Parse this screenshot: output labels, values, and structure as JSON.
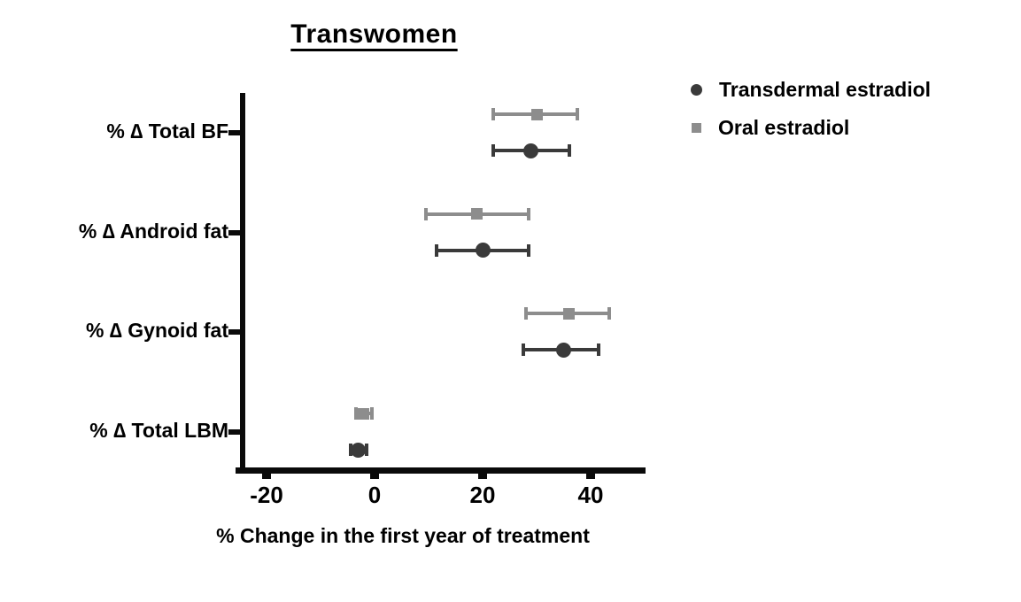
{
  "chart_data": {
    "type": "scatter",
    "variant": "horizontal-dot-error-bars",
    "title": "Transwomen",
    "xlabel": "% Change in the first year of treatment",
    "ylabel": "",
    "categories": [
      "% ∆ Total BF",
      "% ∆ Android fat",
      "% ∆ Gynoid fat",
      "% ∆ Total LBM"
    ],
    "x_ticks": [
      -20,
      0,
      20,
      40
    ],
    "xlim": [
      -26,
      50
    ],
    "grid": false,
    "legend_position": "top-right",
    "series": [
      {
        "name": "Transdermal estradiol",
        "marker": "circle",
        "color": "#3a3a3a",
        "values": [
          29,
          20,
          35,
          -3
        ],
        "ci_low": [
          22,
          11.5,
          27.5,
          -4.5
        ],
        "ci_high": [
          36,
          28.5,
          41.5,
          -1.5
        ]
      },
      {
        "name": "Oral estradiol",
        "marker": "square",
        "color": "#8d8d8d",
        "values": [
          30,
          19,
          36,
          -2
        ],
        "ci_low": [
          22,
          9.5,
          28,
          -3.5
        ],
        "ci_high": [
          37.5,
          28.5,
          43.5,
          -0.5
        ]
      }
    ]
  }
}
